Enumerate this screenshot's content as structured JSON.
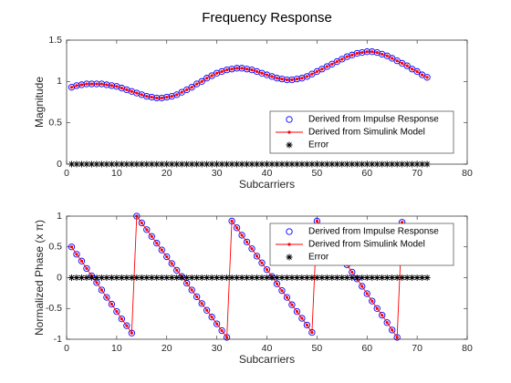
{
  "chart_data": [
    {
      "type": "line",
      "title": "Frequency Response",
      "xlabel": "Subcarriers",
      "ylabel": "Magnitude",
      "x": [
        1,
        2,
        3,
        4,
        5,
        6,
        7,
        8,
        9,
        10,
        11,
        12,
        13,
        14,
        15,
        16,
        17,
        18,
        19,
        20,
        21,
        22,
        23,
        24,
        25,
        26,
        27,
        28,
        29,
        30,
        31,
        32,
        33,
        34,
        35,
        36,
        37,
        38,
        39,
        40,
        41,
        42,
        43,
        44,
        45,
        46,
        47,
        48,
        49,
        50,
        51,
        52,
        53,
        54,
        55,
        56,
        57,
        58,
        59,
        60,
        61,
        62,
        63,
        64,
        65,
        66,
        67,
        68,
        69,
        70,
        71,
        72
      ],
      "series": [
        {
          "name": "Derived from Impulse Response",
          "color": "#0000ff",
          "marker": "o",
          "linestyle": "none",
          "values": [
            0.93,
            0.95,
            0.96,
            0.97,
            0.97,
            0.97,
            0.97,
            0.96,
            0.95,
            0.94,
            0.92,
            0.9,
            0.88,
            0.86,
            0.84,
            0.82,
            0.81,
            0.8,
            0.8,
            0.81,
            0.82,
            0.84,
            0.87,
            0.9,
            0.93,
            0.97,
            1.0,
            1.04,
            1.07,
            1.1,
            1.12,
            1.14,
            1.15,
            1.16,
            1.16,
            1.15,
            1.14,
            1.12,
            1.1,
            1.08,
            1.06,
            1.04,
            1.03,
            1.02,
            1.02,
            1.03,
            1.04,
            1.06,
            1.09,
            1.12,
            1.15,
            1.18,
            1.21,
            1.24,
            1.27,
            1.3,
            1.32,
            1.34,
            1.35,
            1.36,
            1.36,
            1.35,
            1.33,
            1.31,
            1.28,
            1.25,
            1.22,
            1.19,
            1.15,
            1.12,
            1.08,
            1.05
          ]
        },
        {
          "name": "Derived from Simulink Model",
          "color": "#ff0000",
          "marker": ".",
          "linestyle": "solid",
          "values": [
            0.93,
            0.95,
            0.96,
            0.97,
            0.97,
            0.97,
            0.97,
            0.96,
            0.95,
            0.94,
            0.92,
            0.9,
            0.88,
            0.86,
            0.84,
            0.82,
            0.81,
            0.8,
            0.8,
            0.81,
            0.82,
            0.84,
            0.87,
            0.9,
            0.93,
            0.97,
            1.0,
            1.04,
            1.07,
            1.1,
            1.12,
            1.14,
            1.15,
            1.16,
            1.16,
            1.15,
            1.14,
            1.12,
            1.1,
            1.08,
            1.06,
            1.04,
            1.03,
            1.02,
            1.02,
            1.03,
            1.04,
            1.06,
            1.09,
            1.12,
            1.15,
            1.18,
            1.21,
            1.24,
            1.27,
            1.3,
            1.32,
            1.34,
            1.35,
            1.36,
            1.36,
            1.35,
            1.33,
            1.31,
            1.28,
            1.25,
            1.22,
            1.19,
            1.15,
            1.12,
            1.08,
            1.05
          ]
        },
        {
          "name": "Error",
          "color": "#000000",
          "marker": "*",
          "linestyle": "none",
          "values": [
            0,
            0,
            0,
            0,
            0,
            0,
            0,
            0,
            0,
            0,
            0,
            0,
            0,
            0,
            0,
            0,
            0,
            0,
            0,
            0,
            0,
            0,
            0,
            0,
            0,
            0,
            0,
            0,
            0,
            0,
            0,
            0,
            0,
            0,
            0,
            0,
            0,
            0,
            0,
            0,
            0,
            0,
            0,
            0,
            0,
            0,
            0,
            0,
            0,
            0,
            0,
            0,
            0,
            0,
            0,
            0,
            0,
            0,
            0,
            0,
            0,
            0,
            0,
            0,
            0,
            0,
            0,
            0,
            0,
            0,
            0,
            0
          ]
        }
      ],
      "xlim": [
        0,
        80
      ],
      "xticks": [
        0,
        10,
        20,
        30,
        40,
        50,
        60,
        70,
        80
      ],
      "ylim": [
        0,
        1.5
      ],
      "yticks": [
        0,
        0.5,
        1,
        1.5
      ],
      "legend": "lower right"
    },
    {
      "type": "line",
      "xlabel": "Subcarriers",
      "ylabel": "Normalized Phase (x π)",
      "x": [
        1,
        2,
        3,
        4,
        5,
        6,
        7,
        8,
        9,
        10,
        11,
        12,
        13,
        14,
        15,
        16,
        17,
        18,
        19,
        20,
        21,
        22,
        23,
        24,
        25,
        26,
        27,
        28,
        29,
        30,
        31,
        32,
        33,
        34,
        35,
        36,
        37,
        38,
        39,
        40,
        41,
        42,
        43,
        44,
        45,
        46,
        47,
        48,
        49,
        50,
        51,
        52,
        53,
        54,
        55,
        56,
        57,
        58,
        59,
        60,
        61,
        62,
        63,
        64,
        65,
        66,
        67,
        68,
        69,
        70,
        71,
        72
      ],
      "series": [
        {
          "name": "Derived from Impulse Response",
          "color": "#0000ff",
          "marker": "o",
          "linestyle": "none",
          "values": [
            0.5,
            0.38,
            0.27,
            0.15,
            0.03,
            -0.08,
            -0.2,
            -0.32,
            -0.43,
            -0.55,
            -0.67,
            -0.78,
            -0.9,
            1.0,
            0.89,
            0.78,
            0.67,
            0.56,
            0.45,
            0.34,
            0.23,
            0.12,
            0.02,
            -0.09,
            -0.2,
            -0.31,
            -0.42,
            -0.53,
            -0.64,
            -0.75,
            -0.86,
            -0.97,
            0.92,
            0.81,
            0.69,
            0.58,
            0.47,
            0.35,
            0.24,
            0.13,
            0.02,
            -0.1,
            -0.21,
            -0.32,
            -0.44,
            -0.55,
            -0.66,
            -0.77,
            -0.89,
            0.92,
            0.8,
            0.68,
            0.57,
            0.45,
            0.33,
            0.21,
            0.09,
            -0.02,
            -0.14,
            -0.26,
            -0.38,
            -0.5,
            -0.61,
            -0.73,
            -0.85,
            -0.97,
            0.9,
            0.78,
            0.66,
            0.55,
            0.43,
            0.31
          ]
        },
        {
          "name": "Derived from Simulink Model",
          "color": "#ff0000",
          "marker": ".",
          "linestyle": "solid",
          "values": [
            0.5,
            0.38,
            0.27,
            0.15,
            0.03,
            -0.08,
            -0.2,
            -0.32,
            -0.43,
            -0.55,
            -0.67,
            -0.78,
            -0.9,
            1.0,
            0.89,
            0.78,
            0.67,
            0.56,
            0.45,
            0.34,
            0.23,
            0.12,
            0.02,
            -0.09,
            -0.2,
            -0.31,
            -0.42,
            -0.53,
            -0.64,
            -0.75,
            -0.86,
            -0.97,
            0.92,
            0.81,
            0.69,
            0.58,
            0.47,
            0.35,
            0.24,
            0.13,
            0.02,
            -0.1,
            -0.21,
            -0.32,
            -0.44,
            -0.55,
            -0.66,
            -0.77,
            -0.89,
            0.92,
            0.8,
            0.68,
            0.57,
            0.45,
            0.33,
            0.21,
            0.09,
            -0.02,
            -0.14,
            -0.26,
            -0.38,
            -0.5,
            -0.61,
            -0.73,
            -0.85,
            -0.97,
            0.9,
            0.78,
            0.66,
            0.55,
            0.43,
            0.31
          ]
        },
        {
          "name": "Error",
          "color": "#000000",
          "marker": "*",
          "linestyle": "none",
          "values": [
            0,
            0,
            0,
            0,
            0,
            0,
            0,
            0,
            0,
            0,
            0,
            0,
            0,
            0,
            0,
            0,
            0,
            0,
            0,
            0,
            0,
            0,
            0,
            0,
            0,
            0,
            0,
            0,
            0,
            0,
            0,
            0,
            0,
            0,
            0,
            0,
            0,
            0,
            0,
            0,
            0,
            0,
            0,
            0,
            0,
            0,
            0,
            0,
            0,
            0,
            0,
            0,
            0,
            0,
            0,
            0,
            0,
            0,
            0,
            0,
            0,
            0,
            0,
            0,
            0,
            0,
            0,
            0,
            0,
            0,
            0,
            0
          ]
        }
      ],
      "xlim": [
        0,
        80
      ],
      "xticks": [
        0,
        10,
        20,
        30,
        40,
        50,
        60,
        70,
        80
      ],
      "ylim": [
        -1,
        1
      ],
      "yticks": [
        -1,
        -0.5,
        0,
        0.5,
        1
      ],
      "legend": "upper right"
    }
  ]
}
